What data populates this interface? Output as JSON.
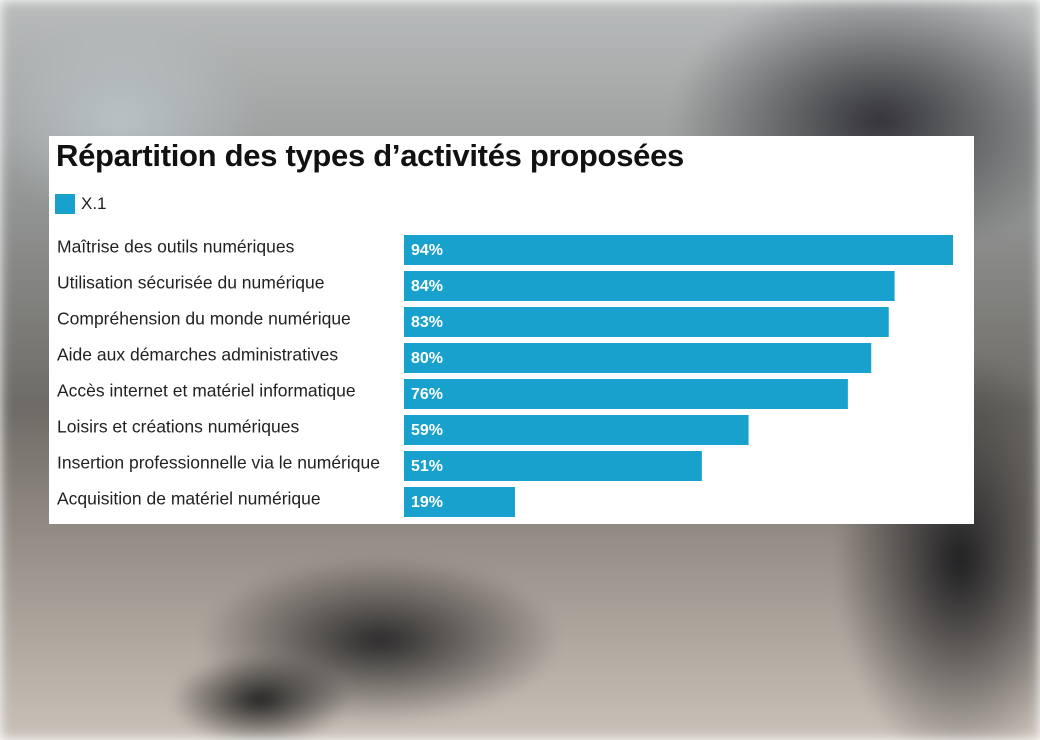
{
  "chart_data": {
    "type": "bar",
    "orientation": "horizontal",
    "title": "Répartition des types d’activités proposées",
    "categories": [
      "Maîtrise des outils numériques",
      "Utilisation sécurisée du numérique",
      "Compréhension du monde numérique",
      "Aide aux démarches administratives",
      "Accès internet et matériel informatique",
      "Loisirs et créations numériques",
      "Insertion professionnelle via le numérique",
      "Acquisition de matériel numérique"
    ],
    "series": [
      {
        "name": "X.1",
        "values": [
          94,
          84,
          83,
          80,
          76,
          59,
          51,
          19
        ]
      }
    ],
    "value_labels": [
      "94%",
      "84%",
      "83%",
      "80%",
      "76%",
      "59%",
      "51%",
      "19%"
    ],
    "xlim": [
      0,
      94
    ],
    "grid": false,
    "legend_position": "top-left",
    "bar_color": "#18a1cd"
  }
}
